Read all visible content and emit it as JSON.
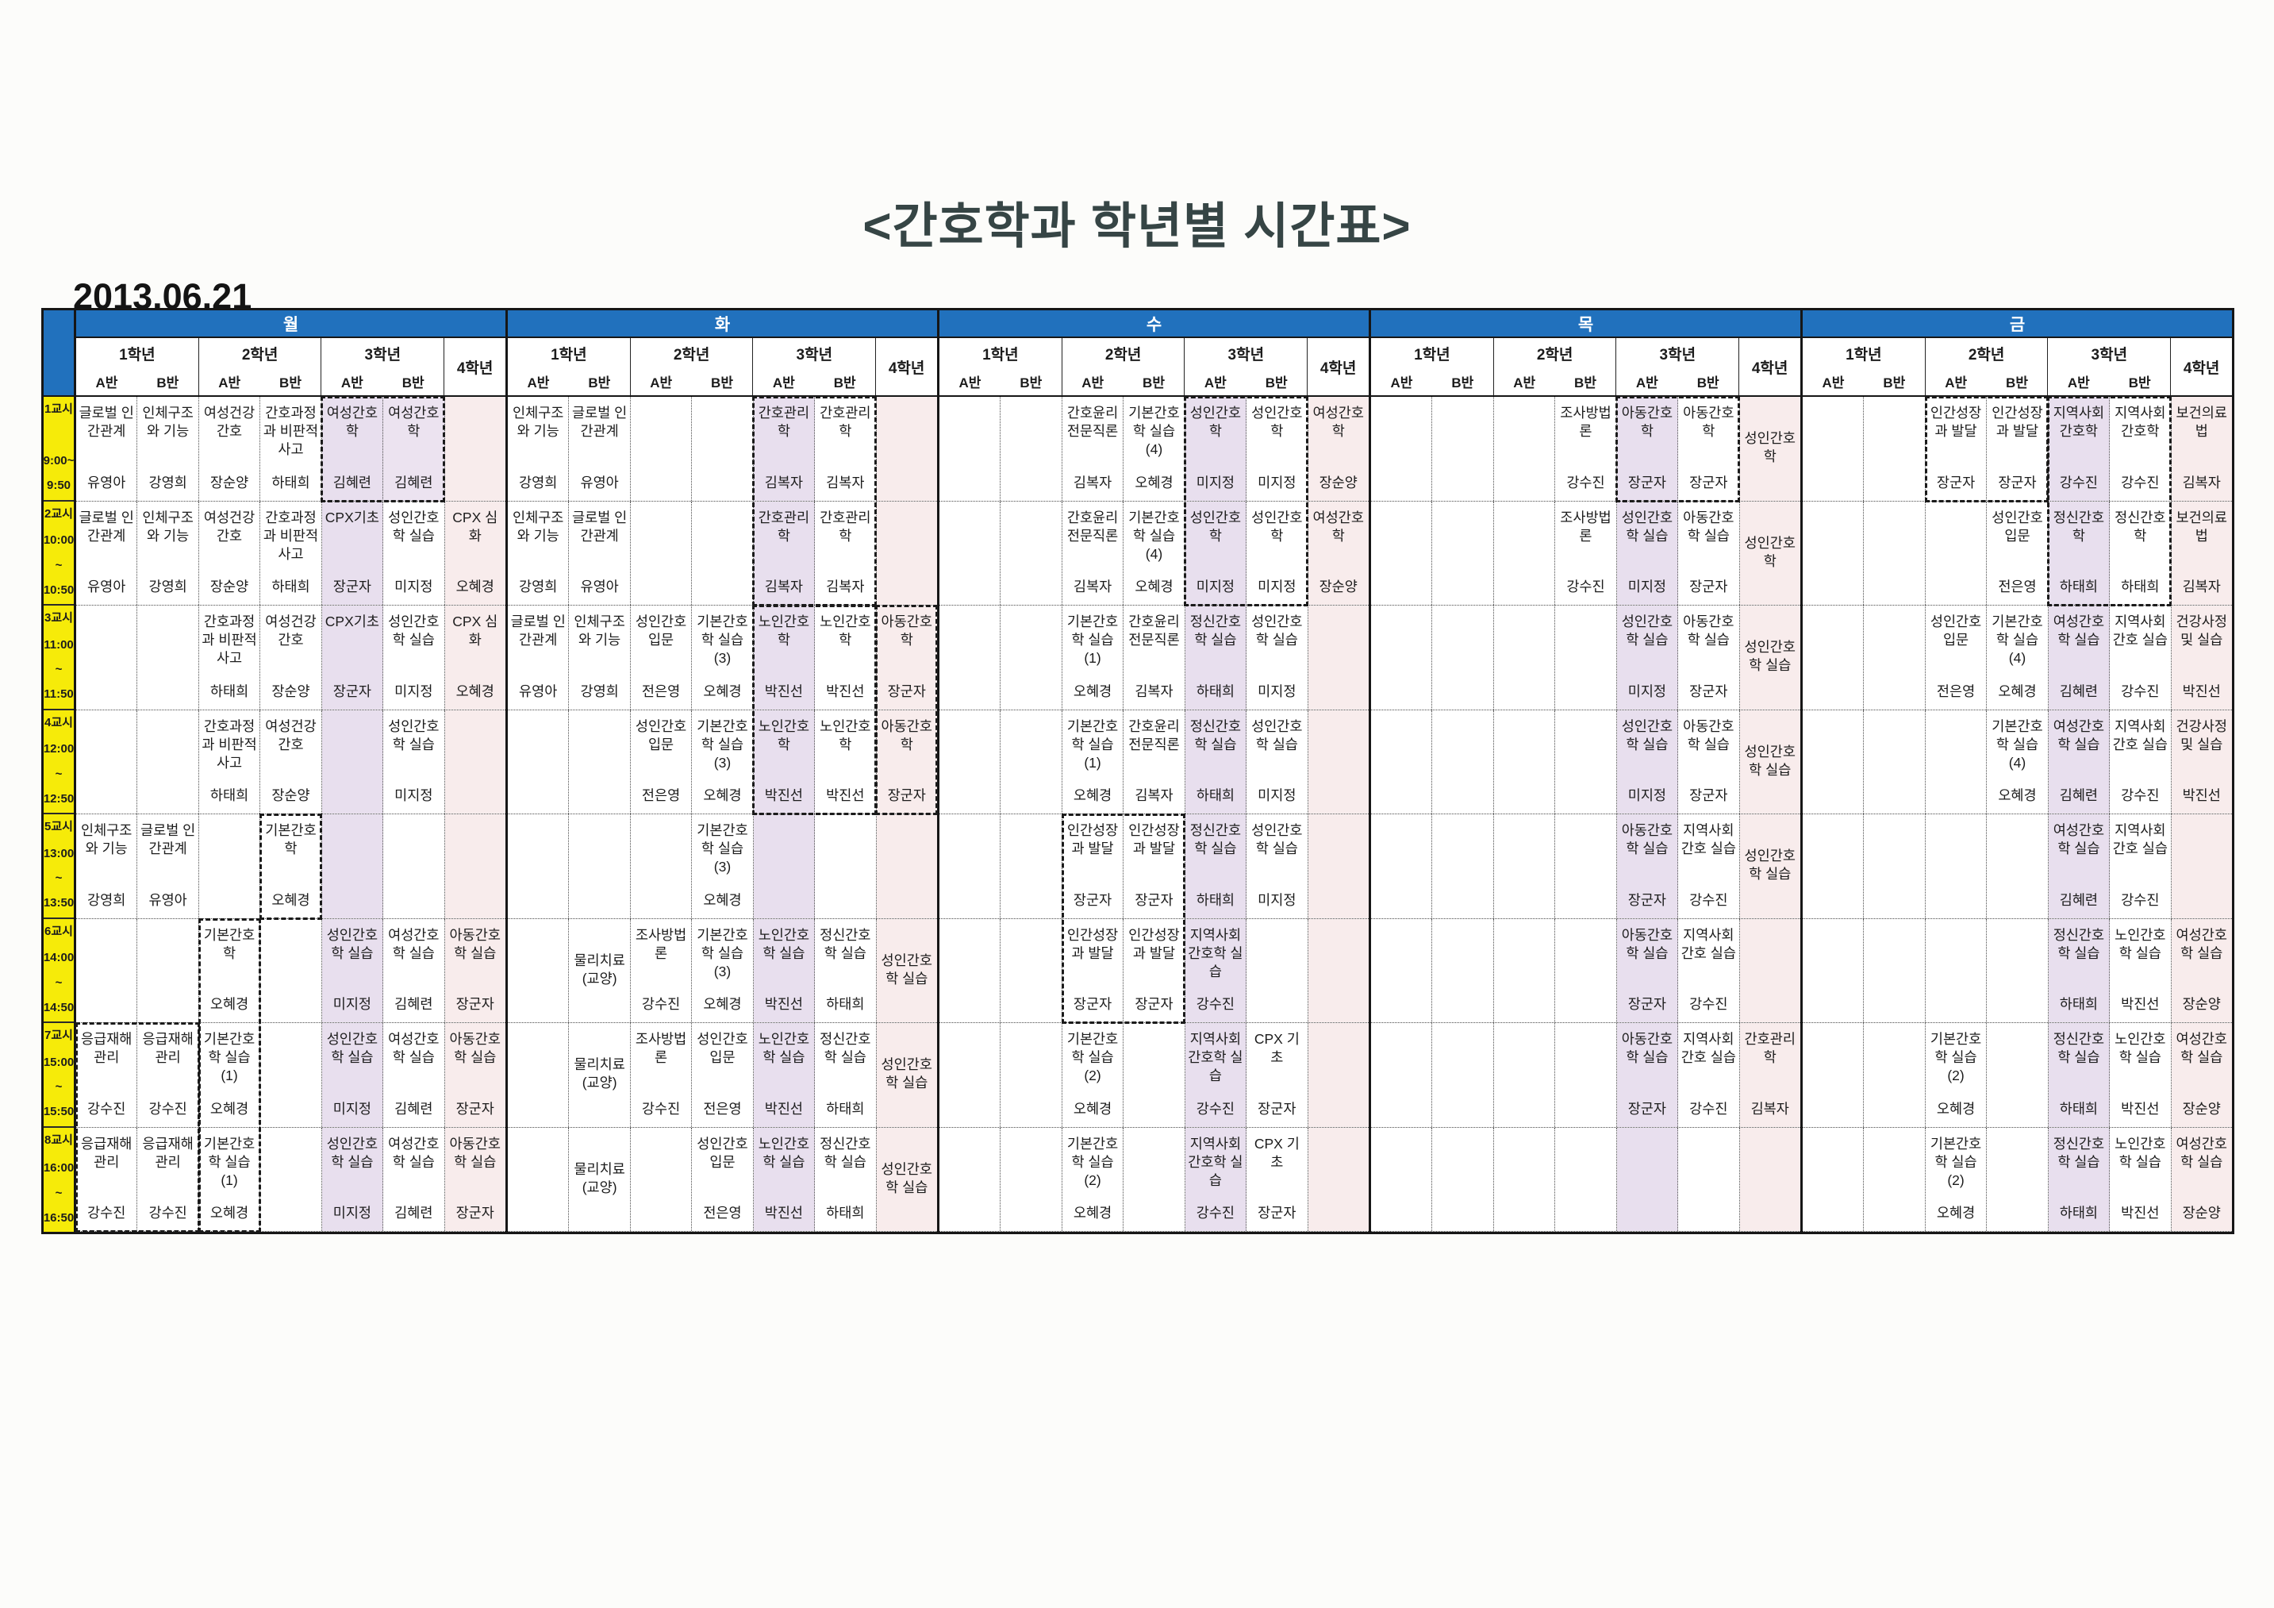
{
  "title": "<간호학과 학년별 시간표>",
  "date": "2013.06.21",
  "colors": {
    "header_blue": "#2171bd",
    "period_yellow": "#f6eb09",
    "grade3a_lavender": "#e8dfee",
    "grade4_pink": "#f8ecec"
  },
  "header": {
    "grades": [
      "1학년",
      "2학년",
      "3학년"
    ],
    "class_a": "A반",
    "class_b": "B반",
    "grade4": "4학년"
  },
  "column_keys": [
    "1학년A반",
    "1학년B반",
    "2학년A반",
    "2학년B반",
    "3학년A반",
    "3학년B반",
    "4학년"
  ],
  "periods": [
    {
      "label": "1교시",
      "time": [
        "9:00~",
        "9:50"
      ]
    },
    {
      "label": "2교시",
      "time": [
        "10:00",
        "~",
        "10:50"
      ]
    },
    {
      "label": "3교시",
      "time": [
        "11:00",
        "~",
        "11:50"
      ]
    },
    {
      "label": "4교시",
      "time": [
        "12:00",
        "~",
        "12:50"
      ]
    },
    {
      "label": "5교시",
      "time": [
        "13:00",
        "~",
        "13:50"
      ]
    },
    {
      "label": "6교시",
      "time": [
        "14:00",
        "~",
        "14:50"
      ]
    },
    {
      "label": "7교시",
      "time": [
        "15:00",
        "~",
        "15:50"
      ]
    },
    {
      "label": "8교시",
      "time": [
        "16:00",
        "~",
        "16:50"
      ]
    }
  ],
  "days": [
    {
      "label": "월",
      "rows": [
        [
          {
            "s": "글로벌 인간관계",
            "p": "유영아"
          },
          {
            "s": "인체구조와 기능",
            "p": "강영희"
          },
          {
            "s": "여성건강간호",
            "p": "장순양"
          },
          {
            "s": "간호과정과 비판적 사고",
            "p": "하태희"
          },
          {
            "s": "여성간호학",
            "p": "김혜련"
          },
          {
            "s": "여성간호학",
            "p": "김혜련",
            "bg": "lav"
          },
          null
        ],
        [
          {
            "s": "글로벌 인간관계",
            "p": "유영아"
          },
          {
            "s": "인체구조와 기능",
            "p": "강영희"
          },
          {
            "s": "여성건강간호",
            "p": "장순양"
          },
          {
            "s": "간호과정과 비판적 사고",
            "p": "하태희"
          },
          {
            "s": "CPX기초",
            "p": "장군자"
          },
          {
            "s": "성인간호학 실습",
            "p": "미지정"
          },
          {
            "s": "CPX 심화",
            "p": "오혜경"
          }
        ],
        [
          null,
          null,
          {
            "s": "간호과정과 비판적 사고",
            "p": "하태희"
          },
          {
            "s": "여성건강간호",
            "p": "장순양"
          },
          {
            "s": "CPX기초",
            "p": "장군자"
          },
          {
            "s": "성인간호학 실습",
            "p": "미지정"
          },
          {
            "s": "CPX 심화",
            "p": "오혜경"
          }
        ],
        [
          null,
          null,
          {
            "s": "간호과정과 비판적 사고",
            "p": "하태희"
          },
          {
            "s": "여성건강간호",
            "p": "장순양"
          },
          null,
          {
            "s": "성인간호학 실습",
            "p": "미지정"
          },
          null
        ],
        [
          {
            "s": "인체구조와 기능",
            "p": "강영희"
          },
          {
            "s": "글로벌 인간관계",
            "p": "유영아"
          },
          null,
          {
            "s": "기본간호학",
            "p": "오혜경"
          },
          null,
          null,
          null
        ],
        [
          null,
          null,
          {
            "s": "기본간호학",
            "p": "오혜경"
          },
          null,
          {
            "s": "성인간호학 실습",
            "p": "미지정"
          },
          {
            "s": "여성간호학 실습",
            "p": "김혜련"
          },
          {
            "s": "아동간호학 실습",
            "p": "장군자"
          }
        ],
        [
          {
            "s": "응급재해관리",
            "p": "강수진"
          },
          {
            "s": "응급재해관리",
            "p": "강수진"
          },
          {
            "s": "기본간호학 실습\n(1)",
            "p": "오혜경"
          },
          null,
          {
            "s": "성인간호학 실습",
            "p": "미지정"
          },
          {
            "s": "여성간호학 실습",
            "p": "김혜련"
          },
          {
            "s": "아동간호학 실습",
            "p": "장군자"
          }
        ],
        [
          {
            "s": "응급재해관리",
            "p": "강수진"
          },
          {
            "s": "응급재해관리",
            "p": "강수진"
          },
          {
            "s": "기본간호학 실습\n(1)",
            "p": "오혜경"
          },
          null,
          {
            "s": "성인간호학 실습",
            "p": "미지정"
          },
          {
            "s": "여성간호학 실습",
            "p": "김혜련"
          },
          {
            "s": "아동간호학 실습",
            "p": "장군자"
          }
        ]
      ]
    },
    {
      "label": "화",
      "rows": [
        [
          {
            "s": "인체구조와 기능",
            "p": "강영희"
          },
          {
            "s": "글로벌 인간관계",
            "p": "유영아"
          },
          null,
          null,
          {
            "s": "간호관리학",
            "p": "김복자"
          },
          {
            "s": "간호관리학",
            "p": "김복자"
          },
          null
        ],
        [
          {
            "s": "인체구조와 기능",
            "p": "강영희"
          },
          {
            "s": "글로벌 인간관계",
            "p": "유영아"
          },
          null,
          null,
          {
            "s": "간호관리학",
            "p": "김복자"
          },
          {
            "s": "간호관리학",
            "p": "김복자"
          },
          null
        ],
        [
          {
            "s": "글로벌 인간관계",
            "p": "유영아"
          },
          {
            "s": "인체구조와 기능",
            "p": "강영희"
          },
          {
            "s": "성인간호입문",
            "p": "전은영"
          },
          {
            "s": "기본간호학 실습\n(3)",
            "p": "오혜경"
          },
          {
            "s": "노인간호학",
            "p": "박진선"
          },
          {
            "s": "노인간호학",
            "p": "박진선"
          },
          {
            "s": "아동간호학",
            "p": "장군자"
          }
        ],
        [
          null,
          null,
          {
            "s": "성인간호입문",
            "p": "전은영"
          },
          {
            "s": "기본간호학 실습\n(3)",
            "p": "오혜경"
          },
          {
            "s": "노인간호학",
            "p": "박진선"
          },
          {
            "s": "노인간호학",
            "p": "박진선"
          },
          {
            "s": "아동간호학",
            "p": "장군자"
          }
        ],
        [
          null,
          null,
          null,
          {
            "s": "기본간호학 실습\n(3)",
            "p": "오혜경"
          },
          null,
          null,
          null
        ],
        [
          null,
          {
            "s": "물리치료\n(교양)"
          },
          {
            "s": "조사방법론",
            "p": "강수진"
          },
          {
            "s": "기본간호학 실습\n(3)",
            "p": "오혜경"
          },
          {
            "s": "노인간호학 실습",
            "p": "박진선"
          },
          {
            "s": "정신간호학 실습",
            "p": "하태희"
          },
          {
            "s": "성인간호학 실습"
          }
        ],
        [
          null,
          {
            "s": "물리치료\n(교양)"
          },
          {
            "s": "조사방법론",
            "p": "강수진"
          },
          {
            "s": "성인간호입문",
            "p": "전은영"
          },
          {
            "s": "노인간호학 실습",
            "p": "박진선"
          },
          {
            "s": "정신간호학 실습",
            "p": "하태희"
          },
          {
            "s": "성인간호학 실습"
          }
        ],
        [
          null,
          {
            "s": "물리치료\n(교양)"
          },
          null,
          {
            "s": "성인간호입문",
            "p": "전은영"
          },
          {
            "s": "노인간호학 실습",
            "p": "박진선"
          },
          {
            "s": "정신간호학 실습",
            "p": "하태희"
          },
          {
            "s": "성인간호학 실습"
          }
        ]
      ]
    },
    {
      "label": "수",
      "rows": [
        [
          null,
          null,
          {
            "s": "간호윤리 전문직론",
            "p": "김복자"
          },
          {
            "s": "기본간호학 실습\n(4)",
            "p": "오혜경"
          },
          {
            "s": "성인간호학",
            "p": "미지정"
          },
          {
            "s": "성인간호학",
            "p": "미지정"
          },
          {
            "s": "여성간호학",
            "p": "장순양"
          }
        ],
        [
          null,
          null,
          {
            "s": "간호윤리 전문직론",
            "p": "김복자"
          },
          {
            "s": "기본간호학 실습\n(4)",
            "p": "오혜경"
          },
          {
            "s": "성인간호학",
            "p": "미지정"
          },
          {
            "s": "성인간호학",
            "p": "미지정"
          },
          {
            "s": "여성간호학",
            "p": "장순양"
          }
        ],
        [
          null,
          null,
          {
            "s": "기본간호학 실습\n(1)",
            "p": "오혜경"
          },
          {
            "s": "간호윤리 전문직론",
            "p": "김복자"
          },
          {
            "s": "정신간호학 실습",
            "p": "하태희"
          },
          {
            "s": "성인간호학 실습",
            "p": "미지정"
          },
          null
        ],
        [
          null,
          null,
          {
            "s": "기본간호학 실습\n(1)",
            "p": "오혜경"
          },
          {
            "s": "간호윤리 전문직론",
            "p": "김복자"
          },
          {
            "s": "정신간호학 실습",
            "p": "하태희"
          },
          {
            "s": "성인간호학 실습",
            "p": "미지정"
          },
          null
        ],
        [
          null,
          null,
          {
            "s": "인간성장과 발달",
            "p": "장군자"
          },
          {
            "s": "인간성장과 발달",
            "p": "장군자"
          },
          {
            "s": "정신간호학 실습",
            "p": "하태희"
          },
          {
            "s": "성인간호학 실습",
            "p": "미지정"
          },
          null
        ],
        [
          null,
          null,
          {
            "s": "인간성장과 발달",
            "p": "장군자"
          },
          {
            "s": "인간성장과 발달",
            "p": "장군자"
          },
          {
            "s": "지역사회간호학 실습",
            "p": "강수진"
          },
          null,
          null
        ],
        [
          null,
          null,
          {
            "s": "기본간호학 실습\n(2)",
            "p": "오혜경"
          },
          null,
          {
            "s": "지역사회간호학 실습",
            "p": "강수진"
          },
          {
            "s": "CPX 기초",
            "p": "장군자"
          },
          null
        ],
        [
          null,
          null,
          {
            "s": "기본간호학 실습\n(2)",
            "p": "오혜경"
          },
          null,
          {
            "s": "지역사회간호학 실습",
            "p": "강수진"
          },
          {
            "s": "CPX 기초",
            "p": "장군자"
          },
          null
        ]
      ]
    },
    {
      "label": "목",
      "rows": [
        [
          null,
          null,
          null,
          {
            "s": "조사방법론",
            "p": "강수진"
          },
          {
            "s": "아동간호학",
            "p": "장군자"
          },
          {
            "s": "아동간호학",
            "p": "장군자"
          },
          {
            "s": "성인간호학"
          }
        ],
        [
          null,
          null,
          null,
          {
            "s": "조사방법론",
            "p": "강수진"
          },
          {
            "s": "성인간호학 실습",
            "p": "미지정"
          },
          {
            "s": "아동간호학 실습",
            "p": "장군자"
          },
          {
            "s": "성인간호학"
          }
        ],
        [
          null,
          null,
          null,
          null,
          {
            "s": "성인간호학 실습",
            "p": "미지정"
          },
          {
            "s": "아동간호학 실습",
            "p": "장군자"
          },
          {
            "s": "성인간호학 실습"
          }
        ],
        [
          null,
          null,
          null,
          null,
          {
            "s": "성인간호학 실습",
            "p": "미지정"
          },
          {
            "s": "아동간호학 실습",
            "p": "장군자"
          },
          {
            "s": "성인간호학 실습"
          }
        ],
        [
          null,
          null,
          null,
          null,
          {
            "s": "아동간호학 실습",
            "p": "장군자"
          },
          {
            "s": "지역사회간호 실습",
            "p": "강수진"
          },
          {
            "s": "성인간호학 실습"
          }
        ],
        [
          null,
          null,
          null,
          null,
          {
            "s": "아동간호학 실습",
            "p": "장군자"
          },
          {
            "s": "지역사회간호 실습",
            "p": "강수진"
          },
          null
        ],
        [
          null,
          null,
          null,
          null,
          {
            "s": "아동간호학 실습",
            "p": "장군자"
          },
          {
            "s": "지역사회간호 실습",
            "p": "강수진"
          },
          {
            "s": "간호관리학",
            "p": "김복자"
          }
        ],
        [
          null,
          null,
          null,
          null,
          null,
          null,
          null
        ]
      ]
    },
    {
      "label": "금",
      "rows": [
        [
          null,
          null,
          {
            "s": "인간성장과 발달",
            "p": "장군자"
          },
          {
            "s": "인간성장과 발달",
            "p": "장군자"
          },
          {
            "s": "지역사회간호학",
            "p": "강수진"
          },
          {
            "s": "지역사회간호학",
            "p": "강수진"
          },
          {
            "s": "보건의료법",
            "p": "김복자"
          }
        ],
        [
          null,
          null,
          null,
          {
            "s": "성인간호입문",
            "p": "전은영"
          },
          {
            "s": "정신간호학",
            "p": "하태희"
          },
          {
            "s": "정신간호학",
            "p": "하태희"
          },
          {
            "s": "보건의료법",
            "p": "김복자"
          }
        ],
        [
          null,
          null,
          {
            "s": "성인간호입문",
            "p": "전은영"
          },
          {
            "s": "기본간호학 실습\n(4)",
            "p": "오혜경"
          },
          {
            "s": "여성간호학 실습",
            "p": "김혜련"
          },
          {
            "s": "지역사회간호 실습",
            "p": "강수진"
          },
          {
            "s": "건강사정 및 실습",
            "p": "박진선"
          }
        ],
        [
          null,
          null,
          null,
          {
            "s": "기본간호학 실습\n(4)",
            "p": "오혜경"
          },
          {
            "s": "여성간호학 실습",
            "p": "김혜련"
          },
          {
            "s": "지역사회간호 실습",
            "p": "강수진"
          },
          {
            "s": "건강사정 및 실습",
            "p": "박진선"
          }
        ],
        [
          null,
          null,
          null,
          null,
          {
            "s": "여성간호학 실습",
            "p": "김혜련"
          },
          {
            "s": "지역사회간호 실습",
            "p": "강수진"
          },
          null
        ],
        [
          null,
          null,
          null,
          null,
          {
            "s": "정신간호학 실습",
            "p": "하태희"
          },
          {
            "s": "노인간호학 실습",
            "p": "박진선"
          },
          {
            "s": "여성간호학 실습",
            "p": "장순양"
          }
        ],
        [
          null,
          null,
          {
            "s": "기본간호학 실습\n(2)",
            "p": "오혜경"
          },
          null,
          {
            "s": "정신간호학 실습",
            "p": "하태희"
          },
          {
            "s": "노인간호학 실습",
            "p": "박진선"
          },
          {
            "s": "여성간호학 실습",
            "p": "장순양"
          }
        ],
        [
          null,
          null,
          {
            "s": "기본간호학 실습\n(2)",
            "p": "오혜경"
          },
          null,
          {
            "s": "정신간호학 실습",
            "p": "하태희"
          },
          {
            "s": "노인간호학 실습",
            "p": "박진선"
          },
          {
            "s": "여성간호학 실습",
            "p": "장순양"
          }
        ]
      ]
    }
  ],
  "dash_boxes": [
    {
      "day": 0,
      "c1": 4,
      "c2": 5,
      "r1": 1,
      "r2": 1
    },
    {
      "day": 0,
      "c1": 3,
      "c2": 3,
      "r1": 5,
      "r2": 5
    },
    {
      "day": 0,
      "c1": 2,
      "c2": 2,
      "r1": 6,
      "r2": 8
    },
    {
      "day": 0,
      "c1": 0,
      "c2": 1,
      "r1": 7,
      "r2": 8
    },
    {
      "day": 1,
      "c1": 4,
      "c2": 5,
      "r1": 1,
      "r2": 2
    },
    {
      "day": 1,
      "c1": 4,
      "c2": 5,
      "r1": 3,
      "r2": 4
    },
    {
      "day": 1,
      "c1": 6,
      "c2": 6,
      "r1": 3,
      "r2": 4
    },
    {
      "day": 2,
      "c1": 4,
      "c2": 5,
      "r1": 1,
      "r2": 2
    },
    {
      "day": 2,
      "c1": 2,
      "c2": 3,
      "r1": 5,
      "r2": 6
    },
    {
      "day": 3,
      "c1": 4,
      "c2": 5,
      "r1": 1,
      "r2": 1
    },
    {
      "day": 4,
      "c1": 2,
      "c2": 3,
      "r1": 1,
      "r2": 1
    },
    {
      "day": 4,
      "c1": 4,
      "c2": 5,
      "r1": 1,
      "r2": 2
    }
  ]
}
